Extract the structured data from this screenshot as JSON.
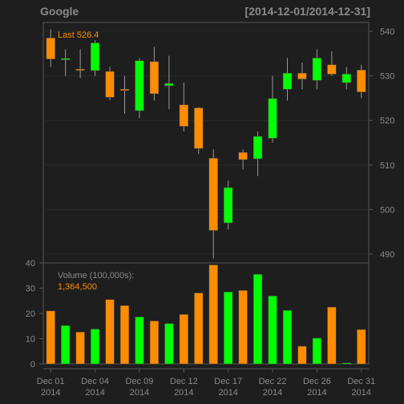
{
  "header": {
    "symbol": "Google",
    "date_range": "[2014-12-01/2014-12-31]"
  },
  "colors": {
    "background": "#1e1e1e",
    "panel_border": "#555555",
    "grid": "#2a2a2a",
    "text": "#8a8a8a",
    "up": "#00ff00",
    "down": "#ff8c00",
    "wick": "#999999",
    "annotation": "#ff8c00"
  },
  "chart_data": [
    {
      "type": "candlestick",
      "title": "Google",
      "subtitle": "[2014-12-01/2014-12-31]",
      "annotation_label": "Last 526.4",
      "ylim": [
        488,
        542
      ],
      "yticks": [
        490,
        500,
        510,
        520,
        530,
        540
      ],
      "grid": true,
      "y_axis_side": "right",
      "candles": [
        {
          "date": "2014-12-01",
          "open": 538.5,
          "high": 540.5,
          "low": 532.0,
          "close": 533.8
        },
        {
          "date": "2014-12-02",
          "open": 533.8,
          "high": 536.0,
          "low": 530.0,
          "close": 533.9
        },
        {
          "date": "2014-12-03",
          "open": 531.5,
          "high": 536.0,
          "low": 529.5,
          "close": 531.4
        },
        {
          "date": "2014-12-04",
          "open": 531.2,
          "high": 538.0,
          "low": 530.0,
          "close": 537.4
        },
        {
          "date": "2014-12-05",
          "open": 531.0,
          "high": 532.0,
          "low": 524.5,
          "close": 525.2
        },
        {
          "date": "2014-12-08",
          "open": 527.0,
          "high": 530.0,
          "low": 521.5,
          "close": 526.9
        },
        {
          "date": "2014-12-09",
          "open": 522.2,
          "high": 534.0,
          "low": 520.5,
          "close": 533.4
        },
        {
          "date": "2014-12-10",
          "open": 533.2,
          "high": 536.5,
          "low": 524.5,
          "close": 526.0
        },
        {
          "date": "2014-12-11",
          "open": 527.8,
          "high": 534.5,
          "low": 522.5,
          "close": 528.3
        },
        {
          "date": "2014-12-12",
          "open": 523.5,
          "high": 528.5,
          "low": 517.5,
          "close": 518.7
        },
        {
          "date": "2014-12-15",
          "open": 522.8,
          "high": 523.0,
          "low": 512.5,
          "close": 513.7
        },
        {
          "date": "2014-12-16",
          "open": 511.5,
          "high": 513.5,
          "low": 489.0,
          "close": 495.3
        },
        {
          "date": "2014-12-17",
          "open": 497.0,
          "high": 506.5,
          "low": 495.5,
          "close": 504.9
        },
        {
          "date": "2014-12-18",
          "open": 512.8,
          "high": 513.5,
          "low": 509.0,
          "close": 511.2
        },
        {
          "date": "2014-12-19",
          "open": 511.4,
          "high": 517.5,
          "low": 507.5,
          "close": 516.4
        },
        {
          "date": "2014-12-22",
          "open": 516.0,
          "high": 530.0,
          "low": 515.0,
          "close": 524.9
        },
        {
          "date": "2014-12-23",
          "open": 527.0,
          "high": 534.0,
          "low": 524.5,
          "close": 530.6
        },
        {
          "date": "2014-12-24",
          "open": 530.6,
          "high": 533.0,
          "low": 527.0,
          "close": 529.3
        },
        {
          "date": "2014-12-26",
          "open": 529.0,
          "high": 536.0,
          "low": 527.0,
          "close": 534.0
        },
        {
          "date": "2014-12-29",
          "open": 532.5,
          "high": 535.5,
          "low": 530.0,
          "close": 530.4
        },
        {
          "date": "2014-12-30",
          "open": 528.5,
          "high": 532.0,
          "low": 527.0,
          "close": 530.4
        },
        {
          "date": "2014-12-31",
          "open": 531.3,
          "high": 532.5,
          "low": 525.0,
          "close": 526.4
        }
      ]
    },
    {
      "type": "bar",
      "title": "Volume (100,000s):",
      "annotation_value": "1,364,500",
      "ylim": [
        0,
        40
      ],
      "yticks": [
        0,
        10,
        20,
        30,
        40
      ],
      "y_axis_side": "left",
      "values": [
        21.0,
        15.2,
        12.6,
        13.8,
        25.5,
        23.1,
        18.6,
        17.0,
        16.0,
        19.6,
        28.1,
        39.2,
        28.5,
        29.1,
        35.5,
        26.9,
        21.2,
        7.0,
        10.2,
        22.5,
        0.4,
        13.6
      ],
      "directions": [
        "down",
        "up",
        "down",
        "up",
        "down",
        "down",
        "up",
        "down",
        "up",
        "down",
        "down",
        "down",
        "up",
        "down",
        "up",
        "up",
        "up",
        "down",
        "up",
        "down",
        "up",
        "down"
      ]
    }
  ],
  "x_axis": {
    "ticks": [
      {
        "index": 0,
        "line1": "Dec 01",
        "line2": "2014"
      },
      {
        "index": 3,
        "line1": "Dec 04",
        "line2": "2014"
      },
      {
        "index": 6,
        "line1": "Dec 09",
        "line2": "2014"
      },
      {
        "index": 9,
        "line1": "Dec 12",
        "line2": "2014"
      },
      {
        "index": 12,
        "line1": "Dec 17",
        "line2": "2014"
      },
      {
        "index": 15,
        "line1": "Dec 22",
        "line2": "2014"
      },
      {
        "index": 18,
        "line1": "Dec 26",
        "line2": "2014"
      },
      {
        "index": 21,
        "line1": "Dec 31",
        "line2": "2014"
      }
    ]
  }
}
